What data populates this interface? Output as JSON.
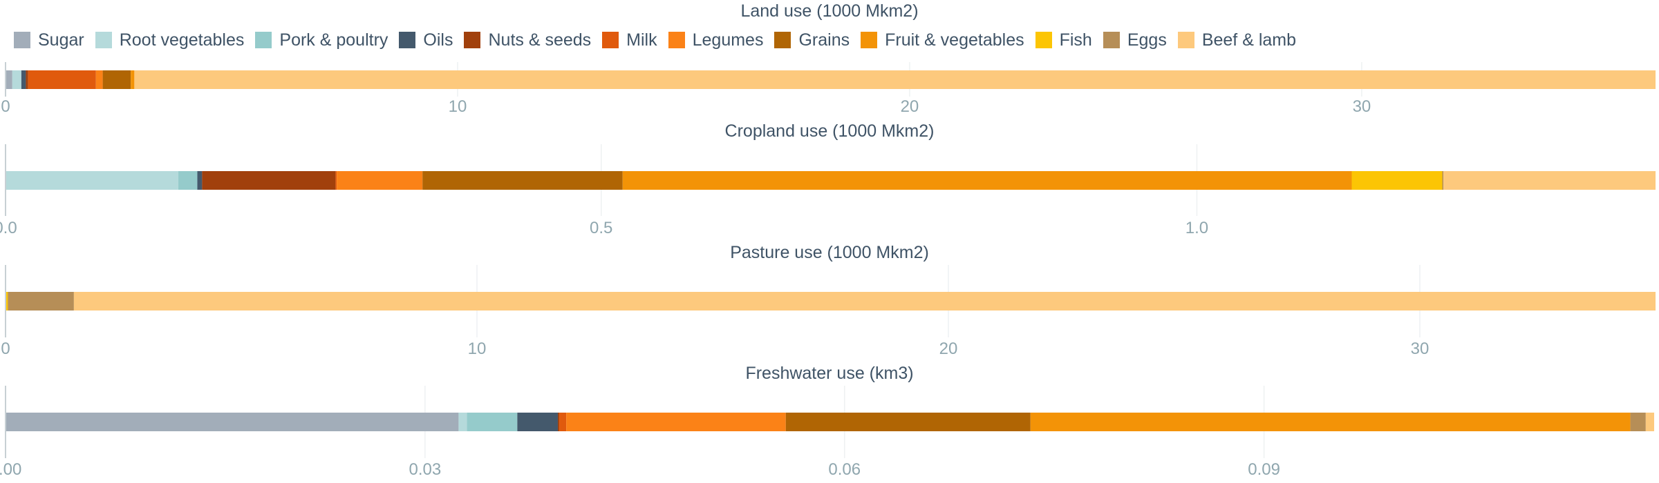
{
  "legend": [
    {
      "label": "Sugar",
      "color": "#a2adb9"
    },
    {
      "label": "Root vegetables",
      "color": "#b5dadb"
    },
    {
      "label": "Pork & poultry",
      "color": "#95cbcb"
    },
    {
      "label": "Oils",
      "color": "#44596c"
    },
    {
      "label": "Nuts & seeds",
      "color": "#a1400c"
    },
    {
      "label": "Milk",
      "color": "#e05a0d"
    },
    {
      "label": "Legumes",
      "color": "#fb8217"
    },
    {
      "label": "Grains",
      "color": "#b06504"
    },
    {
      "label": "Fruit & vegetables",
      "color": "#f39307"
    },
    {
      "label": "Fish",
      "color": "#fcc504"
    },
    {
      "label": "Eggs",
      "color": "#b68e57"
    },
    {
      "label": "Beef & lamb",
      "color": "#fdc97d"
    }
  ],
  "chart_data": [
    {
      "type": "bar",
      "orientation": "horizontal",
      "stacked": true,
      "title": "Land use (1000 Mkm2)",
      "xlim": [
        0,
        36.5
      ],
      "ticks": [
        "0",
        "10",
        "20",
        "30"
      ],
      "tick_values": [
        0,
        10,
        20,
        30
      ],
      "series": [
        {
          "name": "Sugar",
          "values": [
            0.15
          ]
        },
        {
          "name": "Root vegetables",
          "values": [
            0.2
          ]
        },
        {
          "name": "Pork & poultry",
          "values": [
            0.0
          ]
        },
        {
          "name": "Oils",
          "values": [
            0.1
          ]
        },
        {
          "name": "Nuts & seeds",
          "values": [
            0.05
          ]
        },
        {
          "name": "Milk",
          "values": [
            1.5
          ]
        },
        {
          "name": "Legumes",
          "values": [
            0.15
          ]
        },
        {
          "name": "Grains",
          "values": [
            0.62
          ]
        },
        {
          "name": "Fruit & vegetables",
          "values": [
            0.08
          ]
        },
        {
          "name": "Fish",
          "values": [
            0.0
          ]
        },
        {
          "name": "Eggs",
          "values": [
            0.0
          ]
        },
        {
          "name": "Beef & lamb",
          "values": [
            33.65
          ]
        }
      ]
    },
    {
      "type": "bar",
      "orientation": "horizontal",
      "stacked": true,
      "title": "Cropland use (1000 Mkm2)",
      "xlim": [
        0,
        1.385
      ],
      "ticks": [
        "0.0",
        "0.5",
        "1.0"
      ],
      "tick_values": [
        0,
        0.5,
        1.0
      ],
      "series": [
        {
          "name": "Sugar",
          "values": [
            0.0
          ]
        },
        {
          "name": "Root vegetables",
          "values": [
            0.145
          ]
        },
        {
          "name": "Pork & poultry",
          "values": [
            0.016
          ]
        },
        {
          "name": "Oils",
          "values": [
            0.004
          ]
        },
        {
          "name": "Nuts & seeds",
          "values": [
            0.112
          ]
        },
        {
          "name": "Milk",
          "values": [
            0.001
          ]
        },
        {
          "name": "Legumes",
          "values": [
            0.072
          ]
        },
        {
          "name": "Grains",
          "values": [
            0.168
          ]
        },
        {
          "name": "Fruit & vegetables",
          "values": [
            0.612
          ]
        },
        {
          "name": "Fish",
          "values": [
            0.076
          ]
        },
        {
          "name": "Eggs",
          "values": [
            0.001
          ]
        },
        {
          "name": "Beef & lamb",
          "values": [
            0.178
          ]
        }
      ]
    },
    {
      "type": "bar",
      "orientation": "horizontal",
      "stacked": true,
      "title": "Pasture use (1000 Mkm2)",
      "xlim": [
        0,
        35
      ],
      "ticks": [
        "0",
        "10",
        "20",
        "30"
      ],
      "tick_values": [
        0,
        10,
        20,
        30
      ],
      "series": [
        {
          "name": "Sugar",
          "values": [
            0.0
          ]
        },
        {
          "name": "Root vegetables",
          "values": [
            0.0
          ]
        },
        {
          "name": "Pork & poultry",
          "values": [
            0.0
          ]
        },
        {
          "name": "Oils",
          "values": [
            0.0
          ]
        },
        {
          "name": "Nuts & seeds",
          "values": [
            0.0
          ]
        },
        {
          "name": "Milk",
          "values": [
            0.0
          ]
        },
        {
          "name": "Legumes",
          "values": [
            0.0
          ]
        },
        {
          "name": "Grains",
          "values": [
            0.0
          ]
        },
        {
          "name": "Fruit & vegetables",
          "values": [
            0.0
          ]
        },
        {
          "name": "Fish",
          "values": [
            0.05
          ]
        },
        {
          "name": "Eggs",
          "values": [
            1.4
          ]
        },
        {
          "name": "Beef & lamb",
          "values": [
            33.55
          ]
        }
      ]
    },
    {
      "type": "bar",
      "orientation": "horizontal",
      "stacked": true,
      "title": "Freshwater use (km3)",
      "xlim": [
        0,
        0.118
      ],
      "ticks": [
        "0.00",
        "0.03",
        "0.06",
        "0.09"
      ],
      "tick_values": [
        0,
        0.03,
        0.06,
        0.09
      ],
      "series": [
        {
          "name": "Sugar",
          "values": [
            0.0324
          ]
        },
        {
          "name": "Root vegetables",
          "values": [
            0.0006
          ]
        },
        {
          "name": "Pork & poultry",
          "values": [
            0.0036
          ]
        },
        {
          "name": "Oils",
          "values": [
            0.0029
          ]
        },
        {
          "name": "Nuts & seeds",
          "values": [
            0.0001
          ]
        },
        {
          "name": "Milk",
          "values": [
            0.0005
          ]
        },
        {
          "name": "Legumes",
          "values": [
            0.0157
          ]
        },
        {
          "name": "Grains",
          "values": [
            0.0175
          ]
        },
        {
          "name": "Fruit & vegetables",
          "values": [
            0.0429
          ]
        },
        {
          "name": "Fish",
          "values": [
            0.0
          ]
        },
        {
          "name": "Eggs",
          "values": [
            0.0011
          ]
        },
        {
          "name": "Beef & lamb",
          "values": [
            0.0006
          ]
        }
      ]
    }
  ]
}
